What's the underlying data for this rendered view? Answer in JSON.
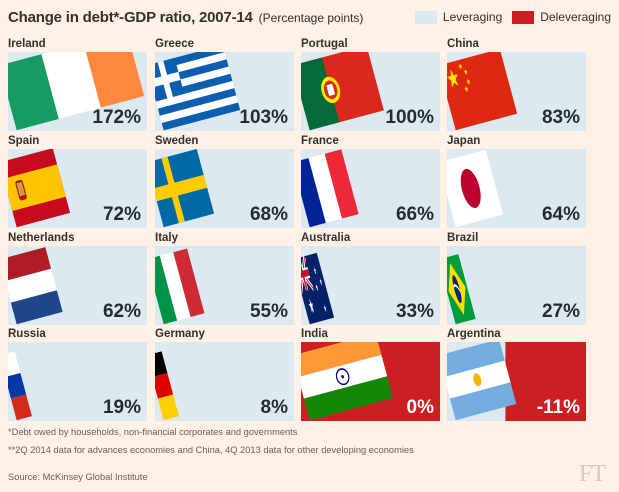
{
  "title": "Change in debt*-GDP ratio, 2007-14",
  "subtitle": "(Percentage points)",
  "legend": {
    "leveraging": "Leveraging",
    "deleveraging": "Deleveraging"
  },
  "colors": {
    "background": "#fff1e5",
    "leveraging": "#dce9f0",
    "deleveraging": "#cc1f21",
    "text": "#33302e"
  },
  "chart_data": {
    "type": "bar",
    "title": "Change in debt*-GDP ratio, 2007-14",
    "subtitle": "(Percentage points)",
    "unit": "percentage points",
    "scale_max": 172,
    "categories": [
      "Ireland",
      "Greece",
      "Portugal",
      "China",
      "Spain",
      "Sweden",
      "France",
      "Japan",
      "Netherlands",
      "Italy",
      "Australia",
      "Brazil",
      "Russia",
      "Germany",
      "India",
      "Argentina"
    ],
    "values": [
      172,
      103,
      100,
      83,
      72,
      68,
      66,
      64,
      62,
      55,
      33,
      27,
      19,
      8,
      0,
      -11
    ],
    "labels": [
      "172%",
      "103%",
      "100%",
      "83%",
      "72%",
      "68%",
      "66%",
      "64%",
      "62%",
      "55%",
      "33%",
      "27%",
      "19%",
      "8%",
      "0%",
      "-11%"
    ],
    "flags": [
      "ireland",
      "greece",
      "portugal",
      "china",
      "spain",
      "sweden",
      "france",
      "japan",
      "netherlands",
      "italy",
      "australia",
      "brazil",
      "russia",
      "germany",
      "india",
      "argentina"
    ],
    "legend": [
      "Leveraging",
      "Deleveraging"
    ],
    "legend_placement": "top-right"
  },
  "footnotes": [
    "*Debt owed by households, non-financial corporates and governments",
    "**2Q 2014 data for advances economies and China, 4Q 2013 data for other developing economies"
  ],
  "source": "Source: McKinsey Global Institute",
  "logo": "FT"
}
